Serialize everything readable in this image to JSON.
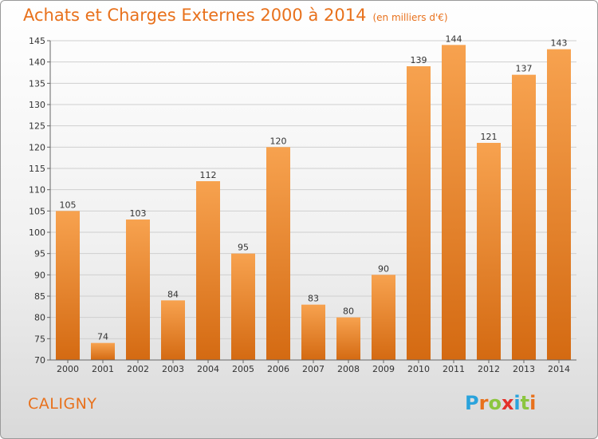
{
  "header": {
    "title": "Achats et Charges Externes 2000 à 2014",
    "subtitle": "(en milliers d'€)"
  },
  "footer": {
    "commune": "CALIGNY"
  },
  "logo": {
    "text": "Proxiti",
    "letters": [
      {
        "char": "P",
        "color": "#2aa3dc"
      },
      {
        "char": "r",
        "color": "#e8711c"
      },
      {
        "char": "o",
        "color": "#8cc63f"
      },
      {
        "char": "x",
        "color": "#e4312b"
      },
      {
        "char": "i",
        "color": "#2aa3dc"
      },
      {
        "char": "t",
        "color": "#8cc63f"
      },
      {
        "char": "i",
        "color": "#e8711c"
      }
    ]
  },
  "colors": {
    "bar_light": "#f7a24f",
    "bar_dark": "#d46a12",
    "accent": "#e8711c"
  },
  "chart_data": {
    "type": "bar",
    "title": "Achats et Charges Externes 2000 à 2014",
    "subtitle": "(en milliers d'€)",
    "xlabel": "",
    "ylabel": "",
    "categories": [
      "2000",
      "2001",
      "2002",
      "2003",
      "2004",
      "2005",
      "2006",
      "2007",
      "2008",
      "2009",
      "2010",
      "2011",
      "2012",
      "2013",
      "2014"
    ],
    "values": [
      105,
      74,
      103,
      84,
      112,
      95,
      120,
      83,
      80,
      90,
      139,
      144,
      121,
      137,
      143
    ],
    "ylim": [
      70,
      145
    ],
    "yticks": [
      70,
      75,
      80,
      85,
      90,
      95,
      100,
      105,
      110,
      115,
      120,
      125,
      130,
      135,
      140,
      145
    ],
    "grid": true,
    "legend": "none"
  }
}
